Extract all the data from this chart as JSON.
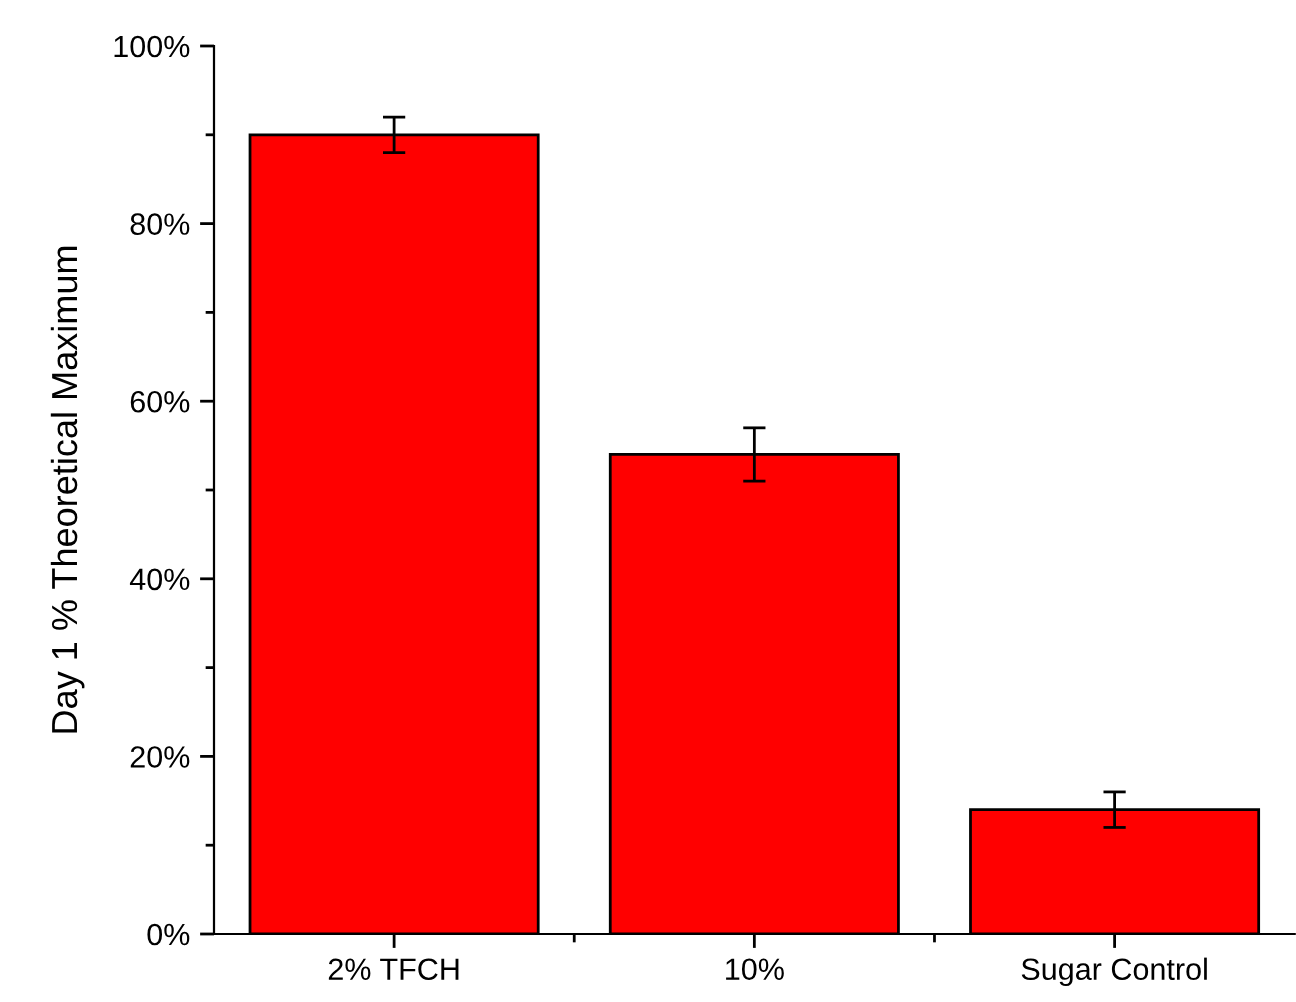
{
  "chart_data": {
    "type": "bar",
    "ylabel": "Day 1 % Theoretical Maximum",
    "categories": [
      "2% TFCH",
      "10%",
      "Sugar Control"
    ],
    "values": [
      90,
      54,
      14
    ],
    "errors": [
      2,
      3,
      2
    ],
    "color": "#ff0000",
    "ylim": [
      0,
      100
    ],
    "yticks": [
      {
        "value": 0,
        "label": "0%"
      },
      {
        "value": 20,
        "label": "20%"
      },
      {
        "value": 40,
        "label": "40%"
      },
      {
        "value": 60,
        "label": "60%"
      },
      {
        "value": 80,
        "label": "80%"
      },
      {
        "value": 100,
        "label": "100%"
      }
    ],
    "grid": false,
    "legend": false
  }
}
